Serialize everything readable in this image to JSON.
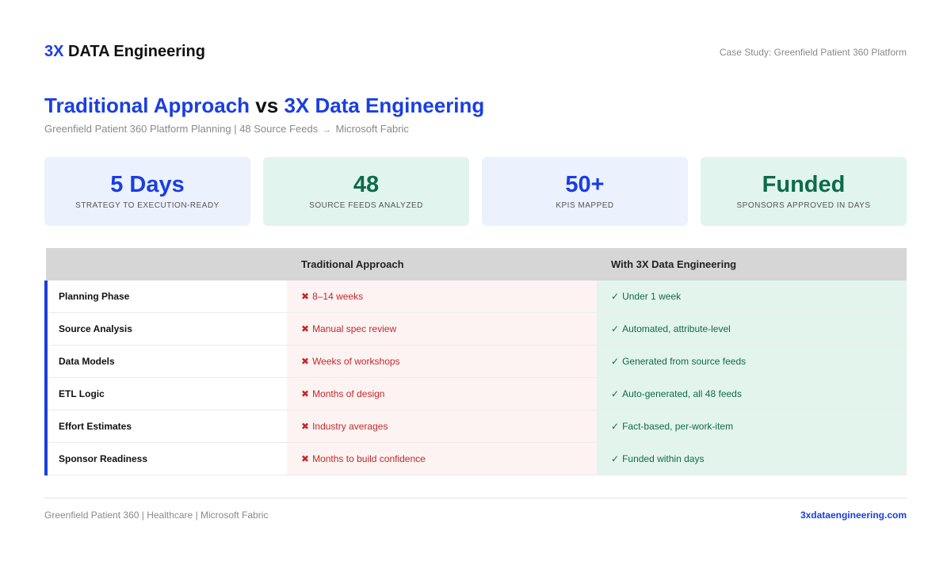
{
  "header": {
    "brand_accent": "3X",
    "brand_rest": "DATA Engineering",
    "case_study": "Case Study: Greenfield Patient 360 Platform"
  },
  "title": {
    "part1": "Traditional Approach",
    "vs": "vs",
    "part2": "3X Data Engineering"
  },
  "subtitle": {
    "before": "Greenfield Patient 360 Platform Planning | 48 Source Feeds",
    "arrow": "→",
    "after": "Microsoft Fabric"
  },
  "stats": [
    {
      "value": "5 Days",
      "label": "Strategy to Execution-Ready",
      "color": "blue"
    },
    {
      "value": "48",
      "label": "Source Feeds Analyzed",
      "color": "green"
    },
    {
      "value": "50+",
      "label": "KPIs Mapped",
      "color": "blue"
    },
    {
      "value": "Funded",
      "label": "Sponsors Approved in Days",
      "color": "green"
    }
  ],
  "table": {
    "headers": [
      "",
      "Traditional Approach",
      "With 3X Data Engineering"
    ],
    "cross_mark": "✖",
    "check_mark": "✓",
    "rows": [
      {
        "label": "Planning Phase",
        "traditional": "8–14 weeks",
        "threex": "Under 1 week"
      },
      {
        "label": "Source Analysis",
        "traditional": "Manual spec review",
        "threex": "Automated, attribute-level"
      },
      {
        "label": "Data Models",
        "traditional": "Weeks of workshops",
        "threex": "Generated from source feeds"
      },
      {
        "label": "ETL Logic",
        "traditional": "Months of design",
        "threex": "Auto-generated, all 48 feeds"
      },
      {
        "label": "Effort Estimates",
        "traditional": "Industry averages",
        "threex": "Fact-based, per-work-item"
      },
      {
        "label": "Sponsor Readiness",
        "traditional": "Months to build confidence",
        "threex": "Funded within days"
      }
    ]
  },
  "footer": {
    "left": "Greenfield Patient 360 | Healthcare | Microsoft Fabric",
    "right": "3xdataengineering.com"
  },
  "colors": {
    "accent_blue": "#1a3fe0",
    "accent_green": "#0e6b4b",
    "negative_red": "#c62828"
  }
}
